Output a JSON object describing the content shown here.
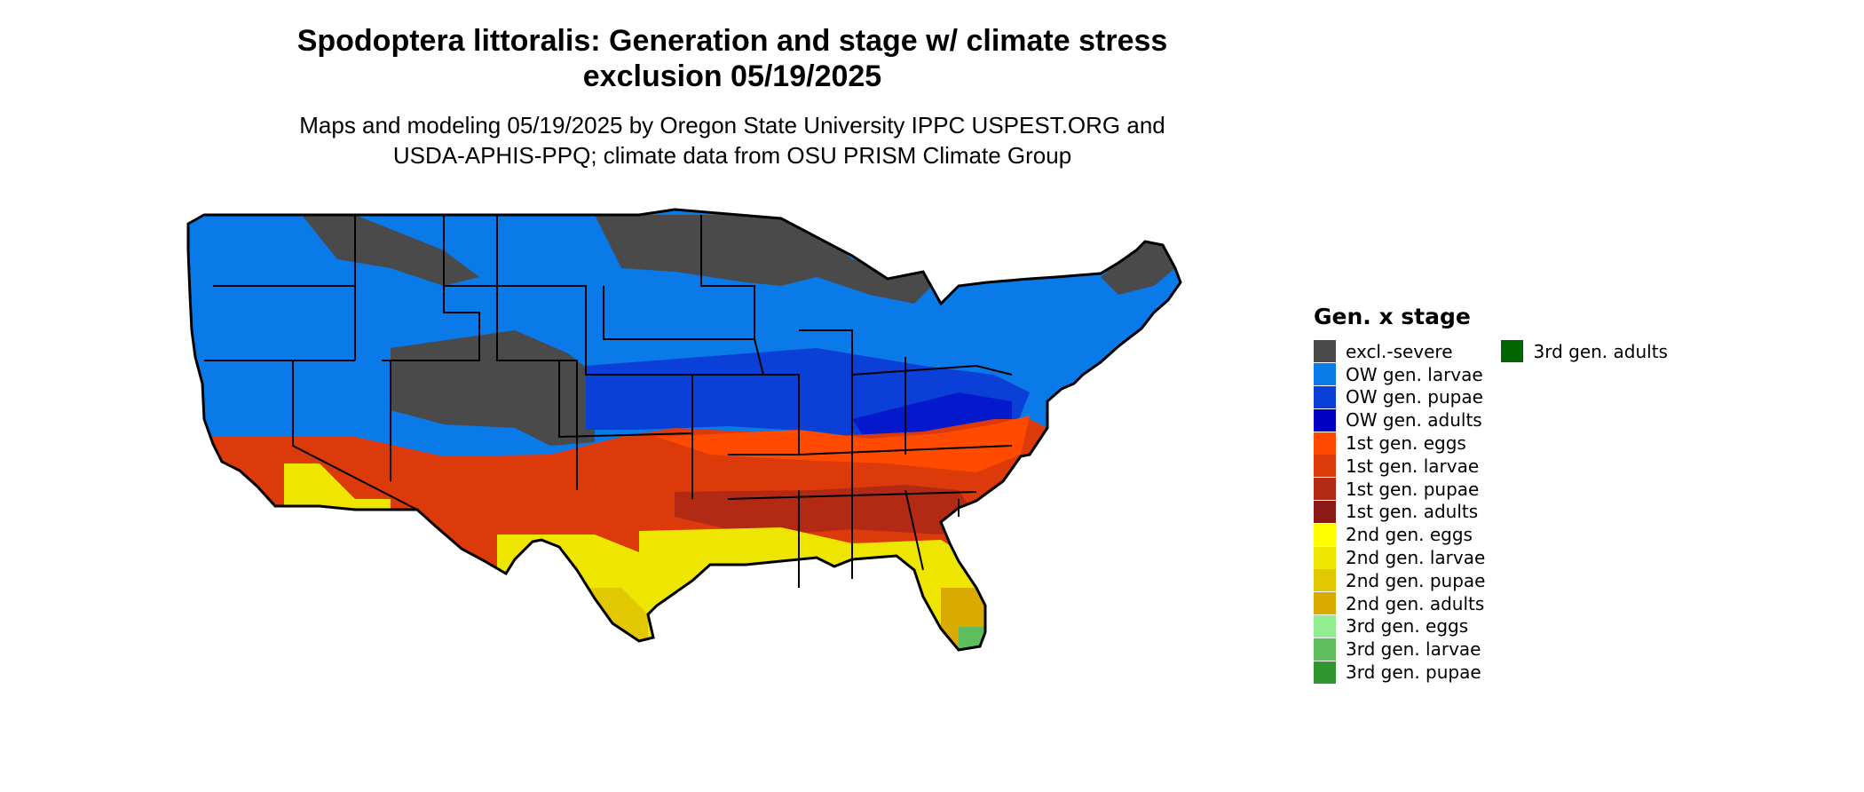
{
  "title_line1": "Spodoptera littoralis: Generation and stage w/ climate stress",
  "title_line2": "exclusion 05/19/2025",
  "subtitle_line1": "Maps and modeling 05/19/2025 by Oregon State University IPPC USPEST.ORG and",
  "subtitle_line2": "USDA-APHIS-PPQ; climate data from OSU PRISM Climate Group",
  "legend": {
    "title": "Gen. x stage",
    "items": [
      {
        "label": "excl.-severe",
        "color": "#4a4a4a"
      },
      {
        "label": "OW gen. larvae",
        "color": "#0a7ae8"
      },
      {
        "label": "OW gen. pupae",
        "color": "#0a3fd8"
      },
      {
        "label": "OW gen. adults",
        "color": "#0000c4"
      },
      {
        "label": "1st gen. eggs",
        "color": "#ff4a00"
      },
      {
        "label": "1st gen. larvae",
        "color": "#dc3a0a"
      },
      {
        "label": "1st gen. pupae",
        "color": "#b22a14"
      },
      {
        "label": "1st gen. adults",
        "color": "#8b1a16"
      },
      {
        "label": "2nd gen. eggs",
        "color": "#ffff00"
      },
      {
        "label": "2nd gen. larvae",
        "color": "#eee600"
      },
      {
        "label": "2nd gen. pupae",
        "color": "#e2c800"
      },
      {
        "label": "2nd gen. adults",
        "color": "#d9aa00"
      },
      {
        "label": "3rd gen. eggs",
        "color": "#90ee90"
      },
      {
        "label": "3rd gen. larvae",
        "color": "#5ebe5e"
      },
      {
        "label": "3rd gen. pupae",
        "color": "#2f962f"
      },
      {
        "label": "3rd gen. adults",
        "color": "#006400"
      }
    ]
  }
}
